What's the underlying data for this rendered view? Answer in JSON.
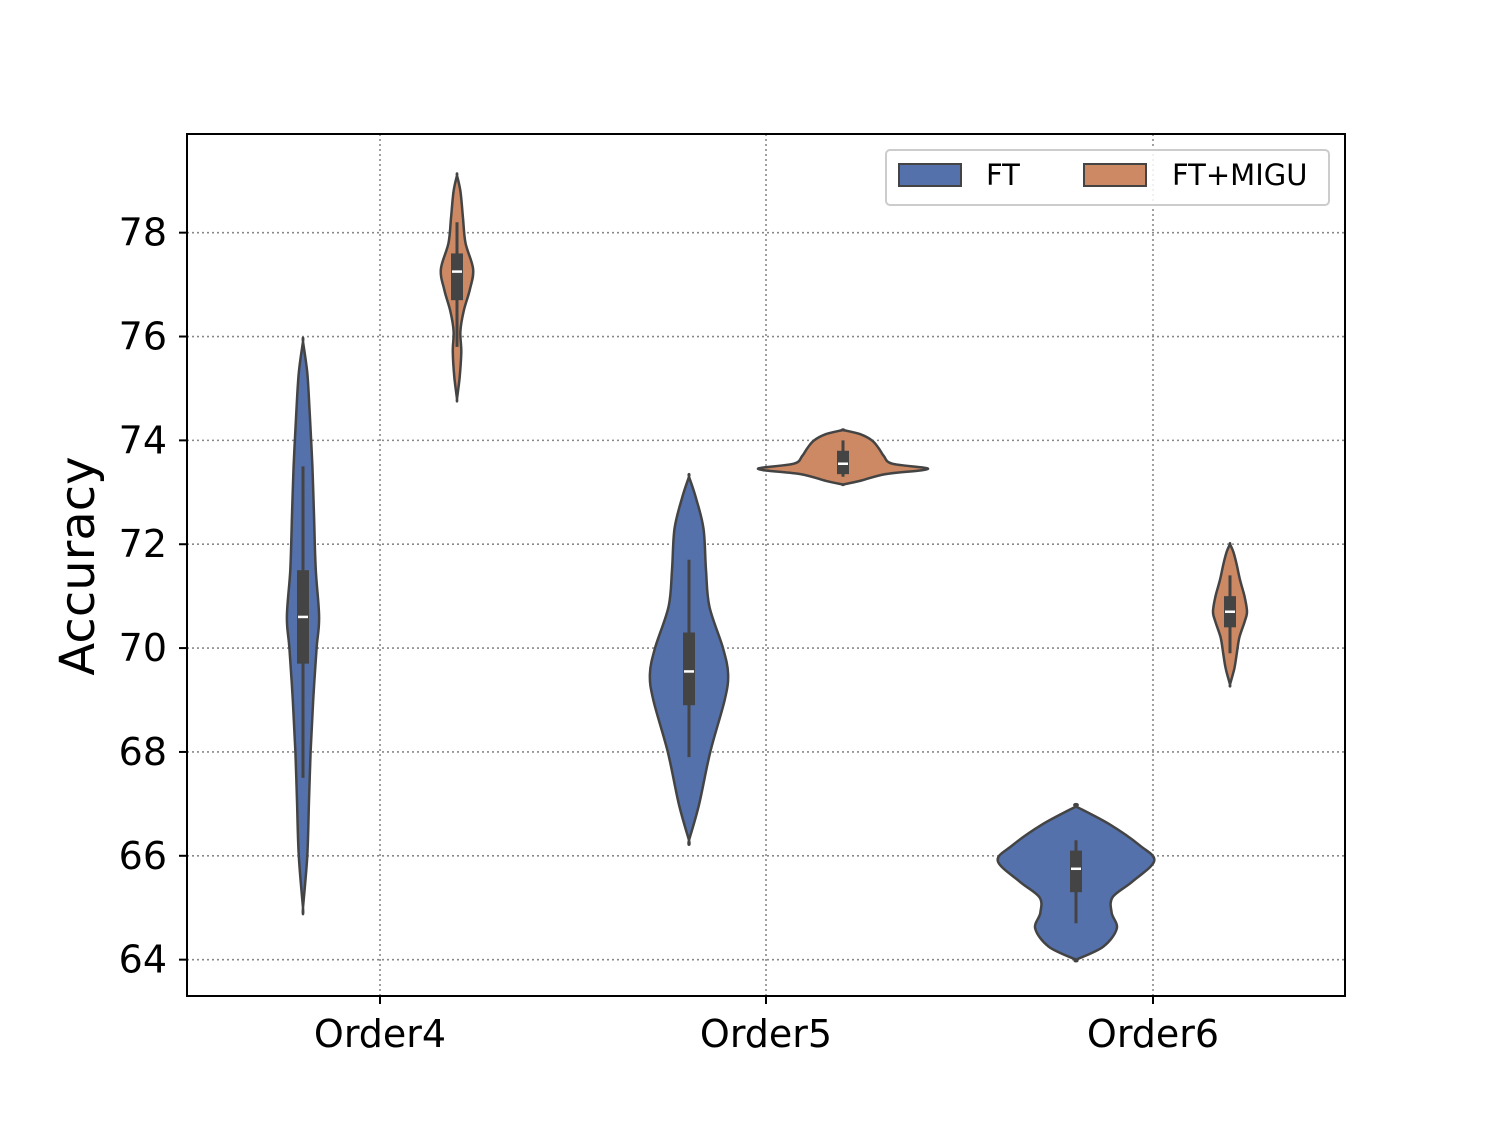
{
  "chart_data": {
    "type": "violin",
    "title": "",
    "xlabel": "",
    "ylabel": "Accuracy",
    "categories": [
      "Order4",
      "Order5",
      "Order6"
    ],
    "ylim": [
      63.3,
      79.9
    ],
    "yticks": [
      64,
      66,
      68,
      70,
      72,
      74,
      76,
      78
    ],
    "grid": true,
    "legend_position": "top-right",
    "series": [
      {
        "name": "FT",
        "color": "#5471ab",
        "violins": [
          {
            "category": "Order4",
            "min": 65.0,
            "max": 75.9,
            "whisker_low": 67.5,
            "whisker_high": 73.5,
            "q1": 69.7,
            "median": 70.6,
            "q3": 71.5,
            "density_profile": [
              [
                65.0,
                0
              ],
              [
                66.0,
                0.05
              ],
              [
                67.0,
                0.07
              ],
              [
                68.0,
                0.09
              ],
              [
                69.0,
                0.12
              ],
              [
                70.0,
                0.16
              ],
              [
                70.6,
                0.19
              ],
              [
                71.5,
                0.15
              ],
              [
                72.5,
                0.13
              ],
              [
                73.5,
                0.11
              ],
              [
                74.5,
                0.08
              ],
              [
                75.3,
                0.05
              ],
              [
                75.9,
                0
              ]
            ]
          },
          {
            "category": "Order5",
            "min": 66.3,
            "max": 73.3,
            "whisker_low": 67.9,
            "whisker_high": 71.7,
            "q1": 68.9,
            "median": 69.55,
            "q3": 70.3,
            "density_profile": [
              [
                66.3,
                0
              ],
              [
                67.0,
                0.12
              ],
              [
                68.0,
                0.25
              ],
              [
                69.0,
                0.42
              ],
              [
                69.5,
                0.46
              ],
              [
                70.0,
                0.4
              ],
              [
                70.8,
                0.24
              ],
              [
                71.5,
                0.2
              ],
              [
                72.3,
                0.17
              ],
              [
                72.9,
                0.08
              ],
              [
                73.3,
                0
              ]
            ]
          },
          {
            "category": "Order6",
            "min": 64.0,
            "max": 66.95,
            "whisker_low": 64.7,
            "whisker_high": 66.3,
            "q1": 65.3,
            "median": 65.75,
            "q3": 66.1,
            "density_profile": [
              [
                64.0,
                0
              ],
              [
                64.25,
                0.32
              ],
              [
                64.6,
                0.48
              ],
              [
                64.9,
                0.42
              ],
              [
                65.2,
                0.43
              ],
              [
                65.5,
                0.66
              ],
              [
                65.9,
                0.92
              ],
              [
                66.2,
                0.75
              ],
              [
                66.6,
                0.4
              ],
              [
                66.95,
                0
              ]
            ]
          }
        ]
      },
      {
        "name": "FT+MIGU",
        "color": "#cc8963",
        "violins": [
          {
            "category": "Order4",
            "min": 74.8,
            "max": 79.1,
            "whisker_low": 75.8,
            "whisker_high": 78.2,
            "q1": 76.7,
            "median": 77.25,
            "q3": 77.6,
            "density_profile": [
              [
                74.8,
                0
              ],
              [
                75.2,
                0.03
              ],
              [
                75.7,
                0.05
              ],
              [
                76.1,
                0.04
              ],
              [
                76.5,
                0.08
              ],
              [
                76.9,
                0.15
              ],
              [
                77.3,
                0.19
              ],
              [
                77.8,
                0.1
              ],
              [
                78.3,
                0.07
              ],
              [
                78.8,
                0.04
              ],
              [
                79.1,
                0
              ]
            ]
          },
          {
            "category": "Order5",
            "min": 73.15,
            "max": 74.2,
            "whisker_low": 73.3,
            "whisker_high": 74.0,
            "q1": 73.35,
            "median": 73.55,
            "q3": 73.8,
            "density_profile": [
              [
                73.15,
                0
              ],
              [
                73.22,
                0.2
              ],
              [
                73.35,
                0.5
              ],
              [
                73.45,
                1.0
              ],
              [
                73.55,
                0.58
              ],
              [
                73.7,
                0.48
              ],
              [
                73.85,
                0.42
              ],
              [
                74.0,
                0.34
              ],
              [
                74.12,
                0.2
              ],
              [
                74.2,
                0
              ]
            ]
          },
          {
            "category": "Order6",
            "min": 69.3,
            "max": 72.0,
            "whisker_low": 69.9,
            "whisker_high": 71.4,
            "q1": 70.4,
            "median": 70.7,
            "q3": 71.0,
            "density_profile": [
              [
                69.3,
                0
              ],
              [
                69.6,
                0.05
              ],
              [
                69.9,
                0.08
              ],
              [
                70.2,
                0.11
              ],
              [
                70.5,
                0.17
              ],
              [
                70.7,
                0.2
              ],
              [
                71.0,
                0.17
              ],
              [
                71.3,
                0.12
              ],
              [
                71.6,
                0.08
              ],
              [
                71.85,
                0.04
              ],
              [
                72.0,
                0
              ]
            ]
          }
        ]
      }
    ]
  }
}
